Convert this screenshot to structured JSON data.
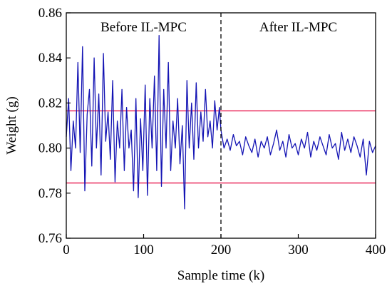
{
  "chart_data": {
    "type": "line",
    "title": "",
    "xlabel": "Sample time (k)",
    "ylabel": "Weight (g)",
    "xlim": [
      0,
      400
    ],
    "ylim": [
      0.76,
      0.86
    ],
    "xticks": [
      "0",
      "100",
      "200",
      "300",
      "400"
    ],
    "yticks": [
      "0.76",
      "0.78",
      "0.80",
      "0.82",
      "0.84",
      "0.86"
    ],
    "grid": false,
    "annotations": [
      {
        "text": "Before IL-MPC",
        "x": 100,
        "y": 0.854
      },
      {
        "text": "After IL-MPC",
        "x": 300,
        "y": 0.854
      }
    ],
    "divider": {
      "x": 200,
      "style": "dashed",
      "color": "#000000"
    },
    "limits": [
      {
        "y": 0.8165,
        "color": "#e8194f"
      },
      {
        "y": 0.7845,
        "color": "#e8194f"
      }
    ],
    "series": [
      {
        "color": "#1414b4",
        "x": [
          0,
          3,
          6,
          9,
          12,
          15,
          18,
          21,
          24,
          27,
          30,
          33,
          36,
          39,
          42,
          45,
          48,
          51,
          54,
          57,
          60,
          63,
          66,
          69,
          72,
          75,
          78,
          81,
          84,
          87,
          90,
          93,
          96,
          99,
          102,
          105,
          108,
          111,
          114,
          117,
          120,
          123,
          126,
          129,
          132,
          135,
          138,
          141,
          144,
          147,
          150,
          153,
          156,
          159,
          162,
          165,
          168,
          171,
          174,
          177,
          180,
          183,
          186,
          189,
          192,
          195,
          198,
          200,
          204,
          208,
          212,
          216,
          220,
          224,
          228,
          232,
          236,
          240,
          244,
          248,
          252,
          256,
          260,
          264,
          268,
          272,
          276,
          280,
          284,
          288,
          292,
          296,
          300,
          304,
          308,
          312,
          316,
          320,
          324,
          328,
          332,
          336,
          340,
          344,
          348,
          352,
          356,
          360,
          364,
          368,
          372,
          376,
          380,
          384,
          388,
          392,
          396,
          400
        ],
        "values": [
          0.805,
          0.822,
          0.79,
          0.812,
          0.8,
          0.838,
          0.798,
          0.845,
          0.781,
          0.815,
          0.826,
          0.792,
          0.84,
          0.8,
          0.824,
          0.788,
          0.842,
          0.803,
          0.816,
          0.795,
          0.83,
          0.785,
          0.812,
          0.8,
          0.826,
          0.79,
          0.818,
          0.8,
          0.808,
          0.781,
          0.822,
          0.778,
          0.813,
          0.79,
          0.828,
          0.779,
          0.822,
          0.8,
          0.832,
          0.79,
          0.85,
          0.783,
          0.826,
          0.8,
          0.838,
          0.79,
          0.812,
          0.8,
          0.822,
          0.793,
          0.81,
          0.773,
          0.83,
          0.8,
          0.82,
          0.795,
          0.829,
          0.8,
          0.816,
          0.803,
          0.826,
          0.805,
          0.812,
          0.8,
          0.821,
          0.808,
          0.818,
          0.808,
          0.8,
          0.804,
          0.799,
          0.806,
          0.801,
          0.803,
          0.797,
          0.805,
          0.801,
          0.798,
          0.804,
          0.796,
          0.803,
          0.8,
          0.805,
          0.797,
          0.802,
          0.808,
          0.799,
          0.803,
          0.796,
          0.806,
          0.8,
          0.802,
          0.797,
          0.804,
          0.8,
          0.807,
          0.796,
          0.803,
          0.799,
          0.805,
          0.801,
          0.797,
          0.806,
          0.8,
          0.802,
          0.795,
          0.807,
          0.799,
          0.804,
          0.798,
          0.805,
          0.801,
          0.796,
          0.804,
          0.788,
          0.803,
          0.798,
          0.801
        ]
      }
    ]
  }
}
